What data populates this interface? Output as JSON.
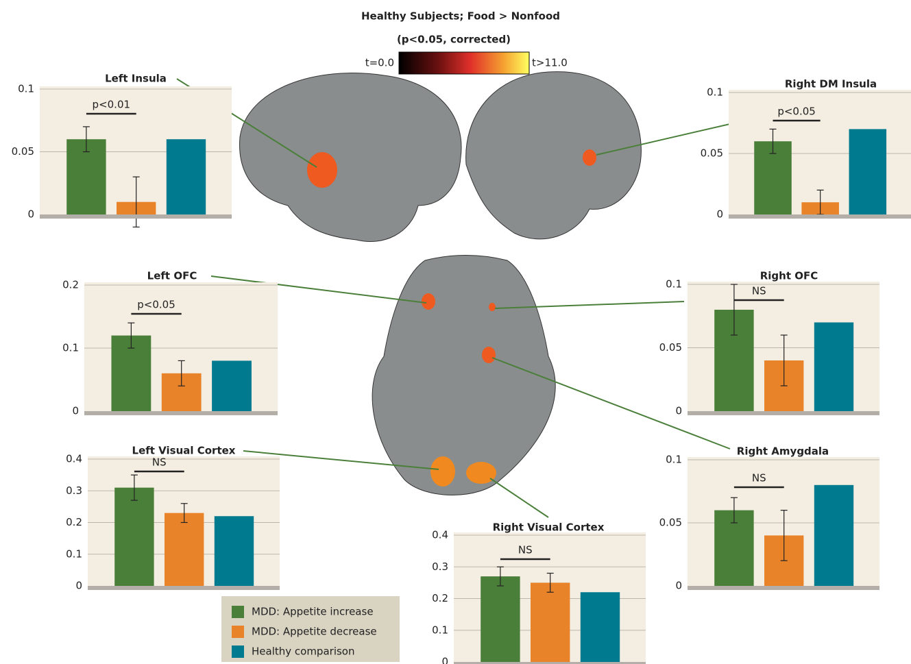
{
  "header": {
    "title": "Healthy Subjects; Food > Nonfood",
    "subtitle": "(p<0.05, corrected)",
    "colorbar": {
      "min_label": "t=0.0",
      "max_label": "t>11.0"
    }
  },
  "legend": [
    {
      "name": "MDD: Appetite increase",
      "color": "#4a7f3a"
    },
    {
      "name": "MDD: Appetite decrease",
      "color": "#e8832a"
    },
    {
      "name": "Healthy comparison",
      "color": "#007a8f"
    }
  ],
  "chart_data": [
    {
      "type": "bar",
      "title": "Left Insula",
      "values": [
        0.06,
        0.01,
        0.06
      ],
      "errors": [
        0.01,
        0.02,
        null
      ],
      "ylim": [
        0,
        0.1
      ],
      "yticks": [
        0,
        0.05,
        0.1
      ],
      "annotation": "p<0.01"
    },
    {
      "type": "bar",
      "title": "Right DM Insula",
      "values": [
        0.06,
        0.01,
        0.07
      ],
      "errors": [
        0.01,
        0.01,
        null
      ],
      "ylim": [
        0,
        0.1
      ],
      "yticks": [
        0,
        0.05,
        0.1
      ],
      "annotation": "p<0.05"
    },
    {
      "type": "bar",
      "title": "Left OFC",
      "values": [
        0.12,
        0.06,
        0.08
      ],
      "errors": [
        0.02,
        0.02,
        null
      ],
      "ylim": [
        0,
        0.2
      ],
      "yticks": [
        0,
        0.1,
        0.2
      ],
      "annotation": "p<0.05"
    },
    {
      "type": "bar",
      "title": "Right OFC",
      "values": [
        0.08,
        0.04,
        0.07
      ],
      "errors": [
        0.02,
        0.02,
        null
      ],
      "ylim": [
        0,
        0.1
      ],
      "yticks": [
        0,
        0.05,
        0.1
      ],
      "annotation": "NS"
    },
    {
      "type": "bar",
      "title": "Left Visual Cortex",
      "values": [
        0.31,
        0.23,
        0.22
      ],
      "errors": [
        0.04,
        0.03,
        null
      ],
      "ylim": [
        0,
        0.4
      ],
      "yticks": [
        0,
        0.1,
        0.2,
        0.3,
        0.4
      ],
      "annotation": "NS"
    },
    {
      "type": "bar",
      "title": "Right Amygdala",
      "values": [
        0.06,
        0.04,
        0.08
      ],
      "errors": [
        0.01,
        0.02,
        null
      ],
      "ylim": [
        0,
        0.1
      ],
      "yticks": [
        0,
        0.05,
        0.1
      ],
      "annotation": "NS"
    },
    {
      "type": "bar",
      "title": "Right Visual Cortex",
      "values": [
        0.27,
        0.25,
        0.22
      ],
      "errors": [
        0.03,
        0.03,
        null
      ],
      "ylim": [
        0,
        0.4
      ],
      "yticks": [
        0,
        0.1,
        0.2,
        0.3,
        0.4
      ],
      "annotation": "NS"
    }
  ]
}
